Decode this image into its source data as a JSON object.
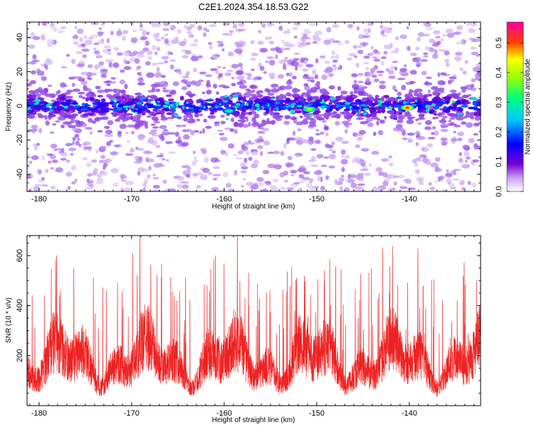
{
  "title": "C2E1.2024.354.18.53.G22",
  "chart_data": [
    {
      "type": "heatmap",
      "xlabel": "Height of straight line (km)",
      "ylabel": "Frequency (Hz)",
      "xlim": [
        -181.3,
        -132.3
      ],
      "ylim": [
        -50,
        49
      ],
      "xticks": [
        -180,
        -170,
        -160,
        -150,
        -140
      ],
      "yticks": [
        -40,
        -20,
        0,
        20,
        40
      ],
      "colorbar": {
        "label": "Normalized spectral amplitude",
        "range": [
          0.0,
          0.57
        ],
        "ticks": [
          0.0,
          0.1,
          0.2,
          0.3,
          0.4,
          0.5
        ],
        "colormap": [
          "#ffffff",
          "#7b00d6",
          "#0000ff",
          "#00e0ff",
          "#00ff40",
          "#ffff00",
          "#ff0000",
          "#ff00a0"
        ]
      },
      "band_center_hz": 0,
      "peaks": [
        {
          "x": -150.8,
          "y": -2,
          "amplitude": 0.4
        },
        {
          "x": -140.2,
          "y": -1,
          "amplitude": 0.52
        },
        {
          "x": -159.5,
          "y": -3,
          "amplitude": 0.3
        }
      ]
    },
    {
      "type": "line",
      "xlabel": "Height of straight line (km)",
      "ylabel": "SNR (10 * v/v)",
      "xlim": [
        -181.3,
        -132.3
      ],
      "ylim": [
        0,
        680
      ],
      "xticks": [
        -180,
        -170,
        -160,
        -150,
        -140
      ],
      "yticks": [
        200,
        400,
        600
      ],
      "series": [
        {
          "color": "#ee2222",
          "baseline": 190,
          "max_peak": 680
        }
      ]
    }
  ]
}
